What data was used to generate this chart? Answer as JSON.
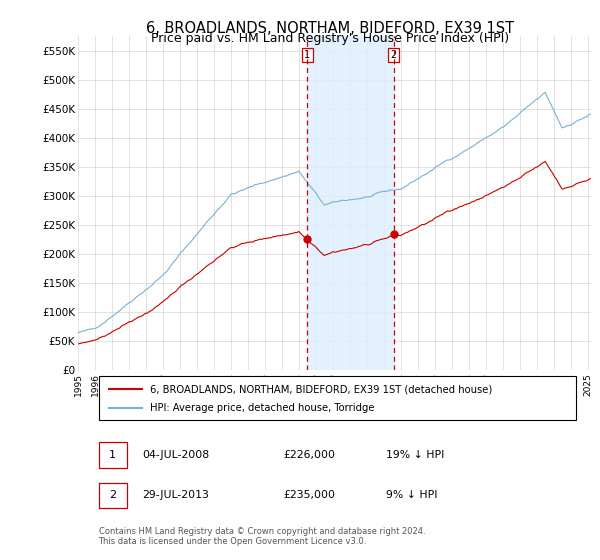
{
  "title": "6, BROADLANDS, NORTHAM, BIDEFORD, EX39 1ST",
  "subtitle": "Price paid vs. HM Land Registry's House Price Index (HPI)",
  "ylabel_values": [
    "£0",
    "£50K",
    "£100K",
    "£150K",
    "£200K",
    "£250K",
    "£300K",
    "£350K",
    "£400K",
    "£450K",
    "£500K",
    "£550K"
  ],
  "yticks": [
    0,
    50000,
    100000,
    150000,
    200000,
    250000,
    300000,
    350000,
    400000,
    450000,
    500000,
    550000
  ],
  "ylim": [
    0,
    575000
  ],
  "xlim_start": 1995.0,
  "xlim_end": 2025.2,
  "title_fontsize": 10.5,
  "subtitle_fontsize": 9.0,
  "sale1_date": "04-JUL-2008",
  "sale1_price": "£226,000",
  "sale1_hpi": "19% ↓ HPI",
  "sale1_year": 2008.5,
  "sale2_date": "29-JUL-2013",
  "sale2_price": "£235,000",
  "sale2_hpi": "9% ↓ HPI",
  "sale2_year": 2013.58,
  "sale_color": "#cc0000",
  "hpi_color": "#7ab0d4",
  "shade_color": "#ddeeff",
  "vline_color": "#cc0000",
  "legend_label_sale": "6, BROADLANDS, NORTHAM, BIDEFORD, EX39 1ST (detached house)",
  "legend_label_hpi": "HPI: Average price, detached house, Torridge",
  "footnote": "Contains HM Land Registry data © Crown copyright and database right 2024.\nThis data is licensed under the Open Government Licence v3.0."
}
